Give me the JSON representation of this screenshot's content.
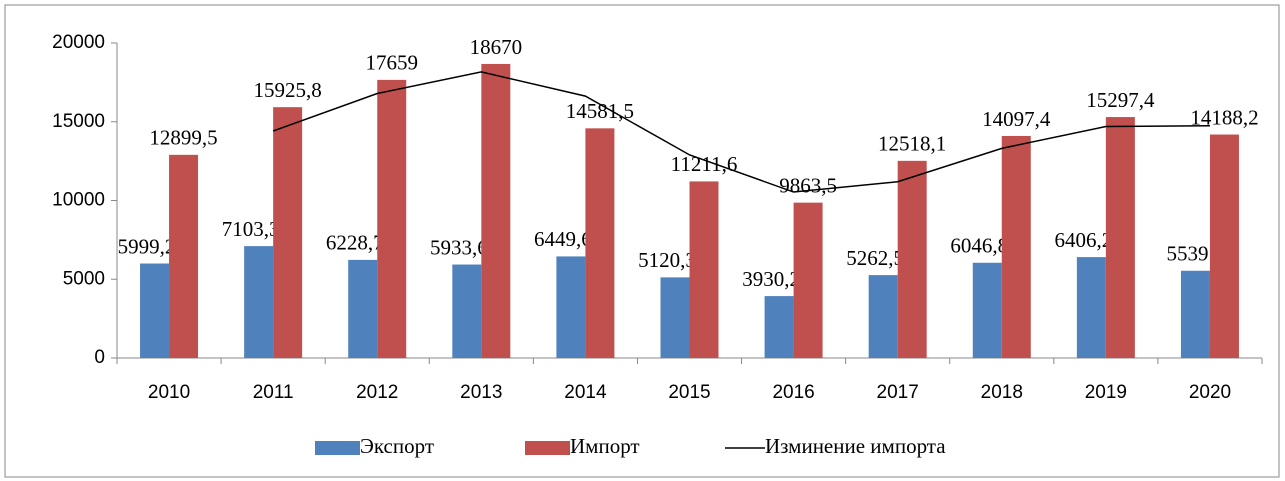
{
  "chart_data": {
    "type": "bar",
    "categories": [
      "2010",
      "2011",
      "2012",
      "2013",
      "2014",
      "2015",
      "2016",
      "2017",
      "2018",
      "2019",
      "2020"
    ],
    "series": [
      {
        "name": "Экспорт",
        "color": "#4f81bd",
        "type": "bar",
        "values": [
          5999.2,
          7103.3,
          6228.7,
          5933.6,
          6449.6,
          5120.3,
          3930.2,
          5262.5,
          6046.8,
          6406.2,
          5539
        ],
        "value_labels": [
          "5999,2",
          "7103,3",
          "6228,7",
          "5933,6",
          "6449,6",
          "5120,3",
          "3930,2",
          "5262,5",
          "6046,8",
          "6406,2",
          "5539"
        ]
      },
      {
        "name": "Импорт",
        "color": "#c0504d",
        "type": "bar",
        "values": [
          12899.5,
          15925.8,
          17659,
          18670,
          14581.5,
          11211.6,
          9863.5,
          12518.1,
          14097.4,
          15297.4,
          14188.2
        ],
        "value_labels": [
          "12899,5",
          "15925,8",
          "17659",
          "18670",
          "14581,5",
          "11211,6",
          "9863,5",
          "12518,1",
          "14097,4",
          "15297,4",
          "14188,2"
        ]
      },
      {
        "name": "Изминение импорта",
        "color": "#000000",
        "type": "line",
        "values": [
          null,
          14413,
          16792,
          18165,
          16626,
          12897,
          10538,
          11191,
          13308,
          14697,
          14743
        ]
      }
    ],
    "ylim": [
      0,
      20000
    ],
    "yticks": [
      0,
      5000,
      10000,
      15000,
      20000
    ],
    "grid": false,
    "legend": "bottom"
  }
}
